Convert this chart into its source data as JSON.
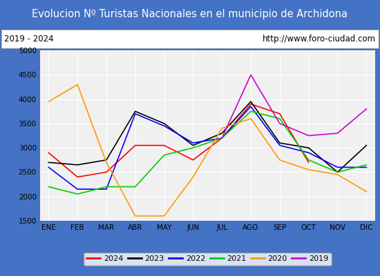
{
  "title": "Evolucion Nº Turistas Nacionales en el municipio de Archidona",
  "subtitle_left": "2019 - 2024",
  "subtitle_right": "http://www.foro-ciudad.com",
  "months": [
    "ENE",
    "FEB",
    "MAR",
    "ABR",
    "MAY",
    "JUN",
    "JUL",
    "AGO",
    "SEP",
    "OCT",
    "NOV",
    "DIC"
  ],
  "ylim": [
    1500,
    5000
  ],
  "yticks": [
    1500,
    2000,
    2500,
    3000,
    3500,
    4000,
    4500,
    5000
  ],
  "series": {
    "2024": {
      "color": "#ff0000",
      "linewidth": 1.2,
      "data": [
        2900,
        2400,
        2500,
        3050,
        3050,
        2750,
        3200,
        3900,
        3700,
        2700,
        null,
        null
      ]
    },
    "2023": {
      "color": "#000000",
      "linewidth": 1.2,
      "data": [
        2700,
        2650,
        2750,
        3750,
        3500,
        3050,
        3300,
        3950,
        3100,
        3000,
        2500,
        3050
      ]
    },
    "2022": {
      "color": "#0000ff",
      "linewidth": 1.2,
      "data": [
        2600,
        2150,
        2150,
        3700,
        3450,
        3100,
        3200,
        3850,
        3050,
        2900,
        2600,
        2600
      ]
    },
    "2021": {
      "color": "#00cc00",
      "linewidth": 1.2,
      "data": [
        2200,
        2050,
        2200,
        2200,
        2850,
        3000,
        3200,
        3750,
        3600,
        2750,
        2500,
        2650
      ]
    },
    "2020": {
      "color": "#ff9900",
      "linewidth": 1.2,
      "data": [
        3950,
        4300,
        2700,
        1600,
        1600,
        2400,
        3400,
        3600,
        2750,
        2550,
        2450,
        2100
      ]
    },
    "2019": {
      "color": "#cc00cc",
      "linewidth": 1.2,
      "data": [
        null,
        null,
        null,
        null,
        null,
        null,
        3200,
        4500,
        3500,
        3250,
        3300,
        3800
      ]
    }
  },
  "legend_order": [
    "2024",
    "2023",
    "2022",
    "2021",
    "2020",
    "2019"
  ],
  "title_bg_color": "#4472c4",
  "title_color": "#ffffff",
  "plot_bg_color": "#f0f0f0",
  "header_bg_color": "#ffffff",
  "title_fontsize": 10.5,
  "axis_fontsize": 7.5,
  "border_color": "#4472c4"
}
